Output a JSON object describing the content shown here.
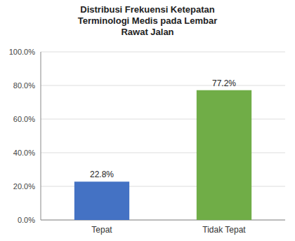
{
  "chart_data": {
    "type": "bar",
    "title": "Distribusi Frekuensi Ketepatan\nTerminologi Medis pada Lembar\nRawat Jalan",
    "categories": [
      "Tepat",
      "Tidak Tepat"
    ],
    "values": [
      22.8,
      77.2
    ],
    "value_labels": [
      "22.8%",
      "77.2%"
    ],
    "data_labels": true,
    "colors": [
      "#4472C4",
      "#70AD47"
    ],
    "ylim": [
      0,
      100
    ],
    "yticks": [
      {
        "value": 0,
        "label": "0.0%"
      },
      {
        "value": 20,
        "label": "20.0%"
      },
      {
        "value": 40,
        "label": "40.0%"
      },
      {
        "value": 60,
        "label": "60.0%"
      },
      {
        "value": 80,
        "label": "80.0%"
      },
      {
        "value": 100,
        "label": "100.0%"
      }
    ],
    "grid": true
  }
}
